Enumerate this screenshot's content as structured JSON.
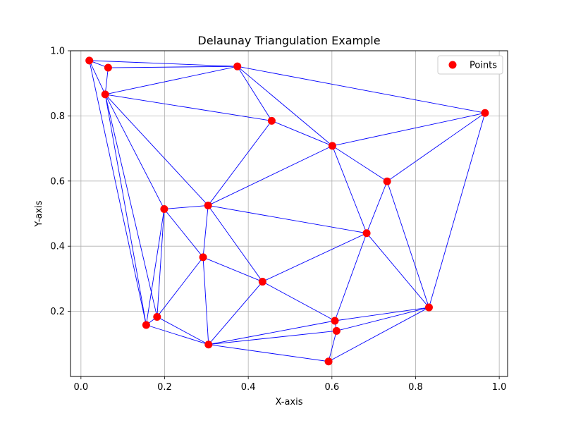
{
  "chart_data": {
    "type": "scatter",
    "title": "Delaunay Triangulation Example",
    "xlabel": "X-axis",
    "ylabel": "Y-axis",
    "xlim": [
      -0.025,
      1.02
    ],
    "ylim": [
      0.0,
      1.0
    ],
    "xticks": [
      "0.0",
      "0.2",
      "0.4",
      "0.6",
      "0.8",
      "1.0"
    ],
    "yticks": [
      "0.2",
      "0.4",
      "0.6",
      "0.8",
      "1.0"
    ],
    "grid": true,
    "legend": {
      "position": "top-right",
      "label": "Points"
    },
    "colors": {
      "points": "#ff0000",
      "edges": "#0000ff"
    },
    "points": [
      {
        "x": 0.02,
        "y": 0.97
      },
      {
        "x": 0.065,
        "y": 0.948
      },
      {
        "x": 0.374,
        "y": 0.952
      },
      {
        "x": 0.058,
        "y": 0.866
      },
      {
        "x": 0.456,
        "y": 0.785
      },
      {
        "x": 0.966,
        "y": 0.809
      },
      {
        "x": 0.601,
        "y": 0.708
      },
      {
        "x": 0.732,
        "y": 0.599
      },
      {
        "x": 0.199,
        "y": 0.514
      },
      {
        "x": 0.304,
        "y": 0.525
      },
      {
        "x": 0.683,
        "y": 0.44
      },
      {
        "x": 0.292,
        "y": 0.366
      },
      {
        "x": 0.434,
        "y": 0.291
      },
      {
        "x": 0.832,
        "y": 0.212
      },
      {
        "x": 0.182,
        "y": 0.183
      },
      {
        "x": 0.156,
        "y": 0.158
      },
      {
        "x": 0.607,
        "y": 0.171
      },
      {
        "x": 0.611,
        "y": 0.14
      },
      {
        "x": 0.305,
        "y": 0.098
      },
      {
        "x": 0.592,
        "y": 0.046
      }
    ],
    "edges": [
      [
        0,
        1
      ],
      [
        0,
        2
      ],
      [
        0,
        3
      ],
      [
        0,
        15
      ],
      [
        1,
        2
      ],
      [
        1,
        3
      ],
      [
        2,
        3
      ],
      [
        2,
        4
      ],
      [
        2,
        6
      ],
      [
        2,
        5
      ],
      [
        3,
        4
      ],
      [
        3,
        8
      ],
      [
        3,
        9
      ],
      [
        3,
        14
      ],
      [
        3,
        15
      ],
      [
        4,
        6
      ],
      [
        4,
        9
      ],
      [
        5,
        6
      ],
      [
        5,
        7
      ],
      [
        5,
        13
      ],
      [
        6,
        7
      ],
      [
        6,
        9
      ],
      [
        6,
        10
      ],
      [
        7,
        10
      ],
      [
        7,
        13
      ],
      [
        8,
        9
      ],
      [
        8,
        11
      ],
      [
        8,
        14
      ],
      [
        8,
        15
      ],
      [
        9,
        10
      ],
      [
        9,
        11
      ],
      [
        9,
        12
      ],
      [
        10,
        12
      ],
      [
        10,
        13
      ],
      [
        10,
        16
      ],
      [
        11,
        12
      ],
      [
        11,
        14
      ],
      [
        11,
        18
      ],
      [
        12,
        16
      ],
      [
        12,
        18
      ],
      [
        13,
        16
      ],
      [
        13,
        17
      ],
      [
        13,
        19
      ],
      [
        14,
        15
      ],
      [
        14,
        18
      ],
      [
        15,
        18
      ],
      [
        16,
        17
      ],
      [
        16,
        18
      ],
      [
        17,
        18
      ],
      [
        17,
        19
      ],
      [
        18,
        19
      ]
    ]
  }
}
